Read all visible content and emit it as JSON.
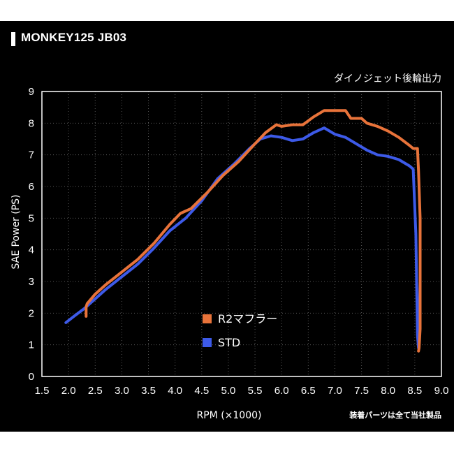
{
  "header": {
    "title": "MONKEY125 JB03"
  },
  "chart_data": {
    "type": "line",
    "title": "MONKEY125 JB03",
    "subtitle": "ダイノジェット後輪出力",
    "xlabel": "RPM (×1000)",
    "ylabel": "SAE Power (PS)",
    "xlim": [
      1.5,
      9.0
    ],
    "ylim": [
      0,
      9
    ],
    "xticks": [
      "1.5",
      "2.0",
      "2.5",
      "3.0",
      "3.5",
      "4.0",
      "4.5",
      "5.0",
      "5.5",
      "6.0",
      "6.5",
      "7.0",
      "7.5",
      "8.0",
      "8.5",
      "9.0"
    ],
    "yticks": [
      "0",
      "1",
      "2",
      "3",
      "4",
      "5",
      "6",
      "7",
      "8",
      "9"
    ],
    "grid": true,
    "legend_position": "center-bottom",
    "note": "装着パーツは全て当社製品",
    "series": [
      {
        "name": "R2マフラー",
        "color": "#e8733a",
        "x": [
          2.33,
          2.33,
          2.35,
          2.5,
          2.7,
          3.0,
          3.3,
          3.6,
          3.9,
          4.1,
          4.3,
          4.6,
          4.9,
          5.2,
          5.5,
          5.7,
          5.9,
          6.0,
          6.2,
          6.4,
          6.6,
          6.8,
          7.0,
          7.2,
          7.3,
          7.5,
          7.6,
          7.8,
          8.0,
          8.2,
          8.4,
          8.47,
          8.55,
          8.57,
          8.6,
          8.6,
          8.58,
          8.57
        ],
        "y": [
          1.9,
          2.2,
          2.3,
          2.6,
          2.9,
          3.3,
          3.7,
          4.2,
          4.8,
          5.15,
          5.3,
          5.8,
          6.35,
          6.8,
          7.35,
          7.7,
          7.95,
          7.9,
          7.95,
          7.95,
          8.2,
          8.4,
          8.4,
          8.4,
          8.15,
          8.15,
          8.0,
          7.9,
          7.75,
          7.55,
          7.3,
          7.2,
          7.2,
          6.5,
          5.0,
          1.5,
          0.9,
          0.8
        ]
      },
      {
        "name": "STD",
        "color": "#3d5ae8",
        "x": [
          1.95,
          2.1,
          2.3,
          2.5,
          2.7,
          3.0,
          3.3,
          3.6,
          3.9,
          4.2,
          4.5,
          4.8,
          5.1,
          5.4,
          5.6,
          5.8,
          6.0,
          6.2,
          6.4,
          6.6,
          6.8,
          7.0,
          7.2,
          7.4,
          7.6,
          7.8,
          8.0,
          8.2,
          8.4,
          8.47,
          8.52,
          8.55,
          8.57,
          8.6,
          8.6
        ],
        "y": [
          1.7,
          1.9,
          2.15,
          2.45,
          2.75,
          3.15,
          3.55,
          4.05,
          4.6,
          5.0,
          5.55,
          6.25,
          6.7,
          7.2,
          7.5,
          7.6,
          7.55,
          7.45,
          7.5,
          7.7,
          7.85,
          7.65,
          7.55,
          7.35,
          7.15,
          7.0,
          6.95,
          6.85,
          6.65,
          6.55,
          4.5,
          1.3,
          0.9,
          3.0,
          4.5
        ]
      }
    ]
  }
}
